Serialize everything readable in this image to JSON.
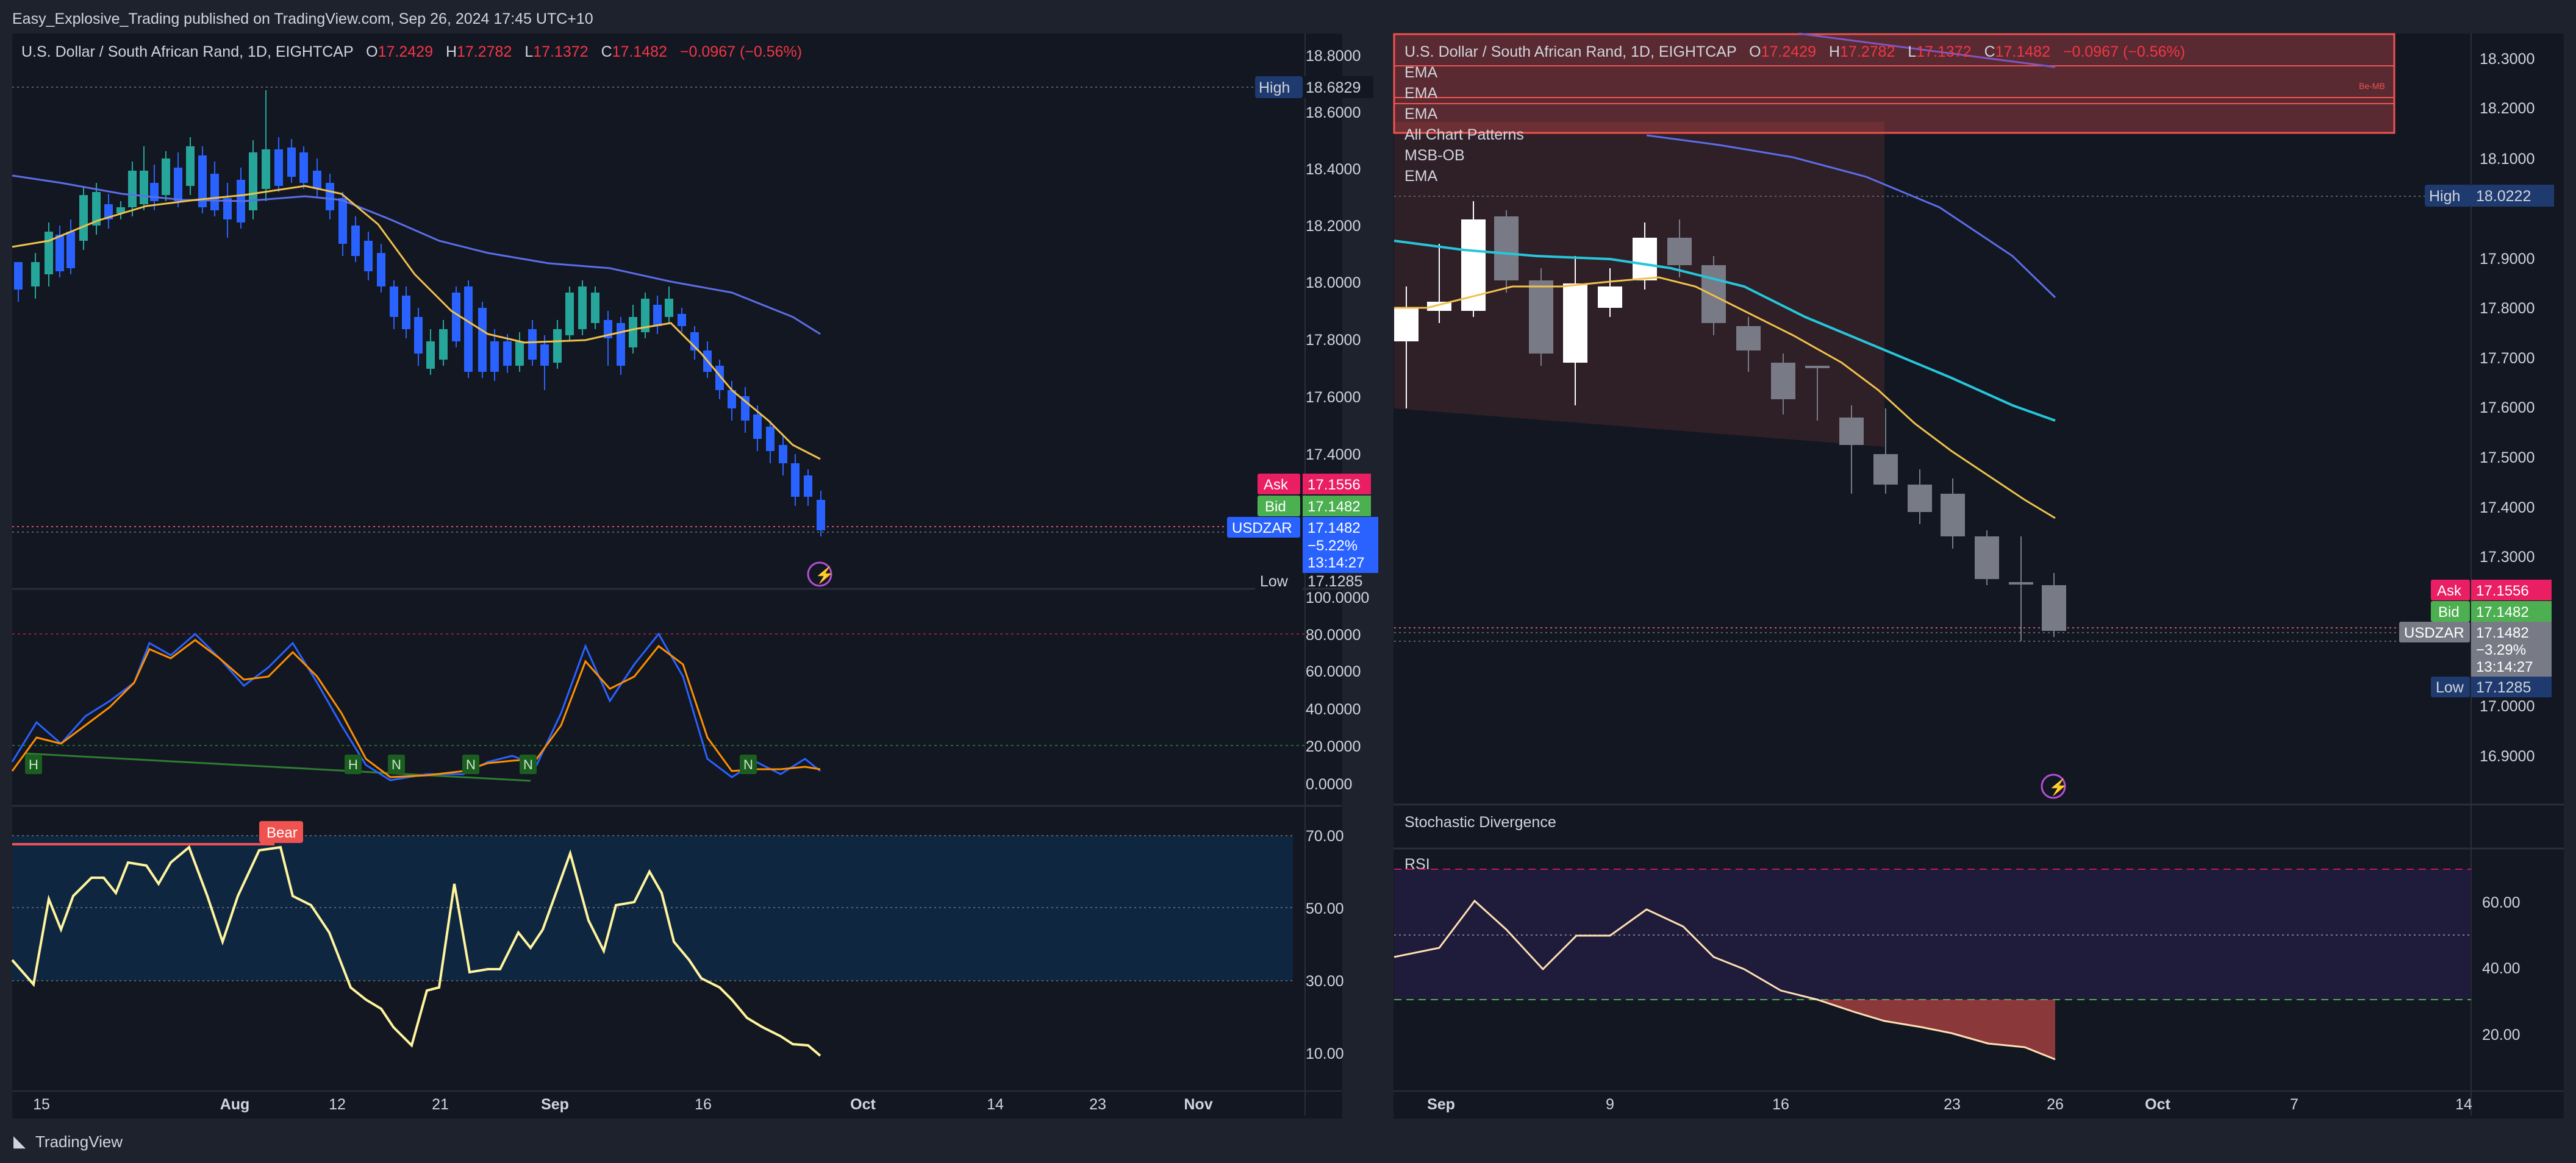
{
  "header": {
    "published": "Easy_Explosive_Trading published on TradingView.com, Sep 26, 2024 17:45 UTC+10"
  },
  "footer": {
    "brand": "TradingView"
  },
  "colors": {
    "background": "#131722",
    "panel": "#0c0e15",
    "up_candle_left": "#26a69a",
    "down_candle_left": "#2962ff",
    "ema_fast": "#f0c24b",
    "ema_slow": "#5b6ee8",
    "ask": "#f23645",
    "bid": "#4caf50",
    "price_tag": "#2962ff",
    "cyan_ema": "#26c6da"
  },
  "left": {
    "legend": {
      "symbol": "U.S. Dollar / South African Rand, 1D, EIGHTCAP",
      "o_label": "O",
      "o": "17.2429",
      "h_label": "H",
      "h": "17.2782",
      "l_label": "L",
      "l": "17.1372",
      "c_label": "C",
      "c": "17.1482",
      "chg": "−0.0967 (−0.56%)"
    },
    "price_axis": [
      "18.8000",
      "18.6000",
      "18.4000",
      "18.2000",
      "18.0000",
      "17.8000",
      "17.6000",
      "17.4000"
    ],
    "high_label": "High",
    "high_value": "18.6829",
    "ask_label": "Ask",
    "ask_value": "17.1556",
    "bid_label": "Bid",
    "bid_value": "17.1482",
    "symbol_tag": "USDZAR",
    "last_value": "17.1482",
    "last_change": "−5.22%",
    "countdown": "13:14:27",
    "low_label": "Low",
    "low_value": "17.1285",
    "stoch_axis": [
      "100.0000",
      "80.0000",
      "60.0000",
      "40.0000",
      "20.0000",
      "0.0000"
    ],
    "stoch_markers": [
      "H",
      "H",
      "N",
      "N",
      "N",
      "N"
    ],
    "rsi_axis": [
      "70.00",
      "50.00",
      "30.00",
      "10.00"
    ],
    "bear_label": "Bear",
    "time_axis": [
      "15",
      "Aug",
      "12",
      "21",
      "Sep",
      "16",
      "Oct",
      "14",
      "23",
      "Nov"
    ]
  },
  "right": {
    "legend": {
      "symbol": "U.S. Dollar / South African Rand, 1D, EIGHTCAP",
      "o_label": "O",
      "o": "17.2429",
      "h_label": "H",
      "h": "17.2782",
      "l_label": "L",
      "l": "17.1372",
      "c_label": "C",
      "c": "17.1482",
      "chg": "−0.0967 (−0.56%)",
      "indicators": [
        "EMA",
        "EMA",
        "EMA",
        "All Chart Patterns",
        "MSB-OB",
        "EMA"
      ]
    },
    "price_axis": [
      "18.3000",
      "18.2000",
      "18.1000",
      "17.9000",
      "17.8000",
      "17.7000",
      "17.6000",
      "17.5000",
      "17.4000",
      "17.3000",
      "17.0000",
      "16.9000"
    ],
    "high_label": "High",
    "high_value": "18.0222",
    "ask_label": "Ask",
    "ask_value": "17.1556",
    "bid_label": "Bid",
    "bid_value": "17.1482",
    "symbol_tag": "USDZAR",
    "last_value": "17.1482",
    "last_change": "−3.29%",
    "countdown": "13:14:27",
    "low_label": "Low",
    "low_value": "17.1285",
    "box_label": "Be-MB",
    "stoch_title": "Stochastic Divergence",
    "rsi_title": "RSI",
    "rsi_axis": [
      "60.00",
      "40.00",
      "20.00"
    ],
    "time_axis": [
      "Sep",
      "9",
      "16",
      "23",
      "26",
      "Oct",
      "7",
      "14"
    ]
  }
}
